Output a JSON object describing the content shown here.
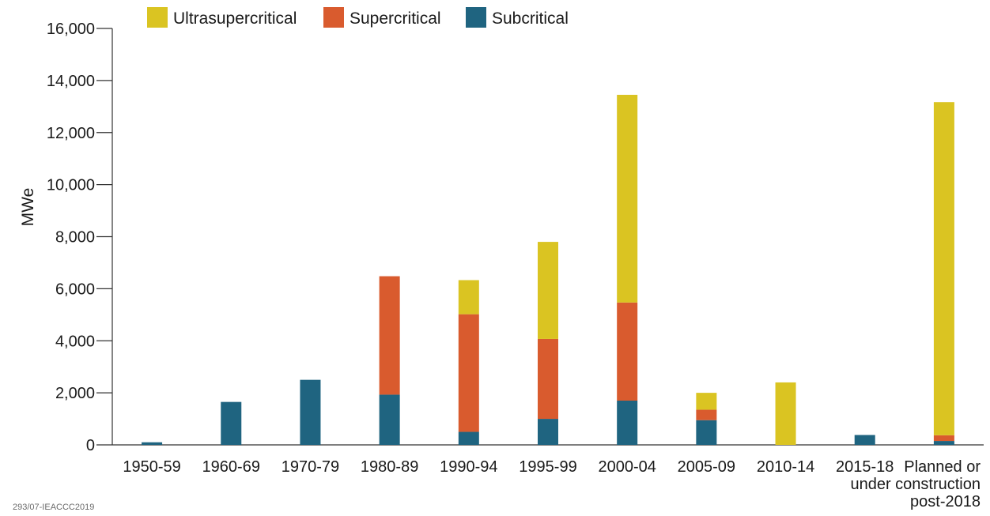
{
  "chart_data": {
    "type": "bar",
    "stacked": true,
    "ylabel": "MWe",
    "xlabel": "",
    "ylim": [
      0,
      16000
    ],
    "yticks": [
      0,
      2000,
      4000,
      6000,
      8000,
      10000,
      12000,
      14000,
      16000
    ],
    "ytick_labels": [
      "0",
      "2,000",
      "4,000",
      "6,000",
      "8,000",
      "10,000",
      "12,000",
      "14,000",
      "16,000"
    ],
    "categories": [
      [
        "1950-59"
      ],
      [
        "1960-69"
      ],
      [
        "1970-79"
      ],
      [
        "1980-89"
      ],
      [
        "1990-94"
      ],
      [
        "1995-99"
      ],
      [
        "2000-04"
      ],
      [
        "2005-09"
      ],
      [
        "2010-14"
      ],
      [
        "2015-18"
      ],
      [
        "Planned or",
        "under construction",
        "post-2018"
      ]
    ],
    "legend_order": [
      "Ultrasupercritical",
      "Supercritical",
      "Subcritical"
    ],
    "series": [
      {
        "name": "Subcritical",
        "color": "#1f6480",
        "values": [
          100,
          1650,
          2500,
          1930,
          500,
          1000,
          1700,
          950,
          0,
          380,
          150
        ]
      },
      {
        "name": "Supercritical",
        "color": "#d95b2e",
        "values": [
          0,
          0,
          0,
          4550,
          4520,
          3070,
          3770,
          400,
          0,
          0,
          220
        ]
      },
      {
        "name": "Ultrasupercritical",
        "color": "#dac422",
        "values": [
          0,
          0,
          0,
          0,
          1310,
          3730,
          7980,
          650,
          2400,
          0,
          12800
        ]
      }
    ]
  },
  "footnote": "293/07-IEACCC2019"
}
